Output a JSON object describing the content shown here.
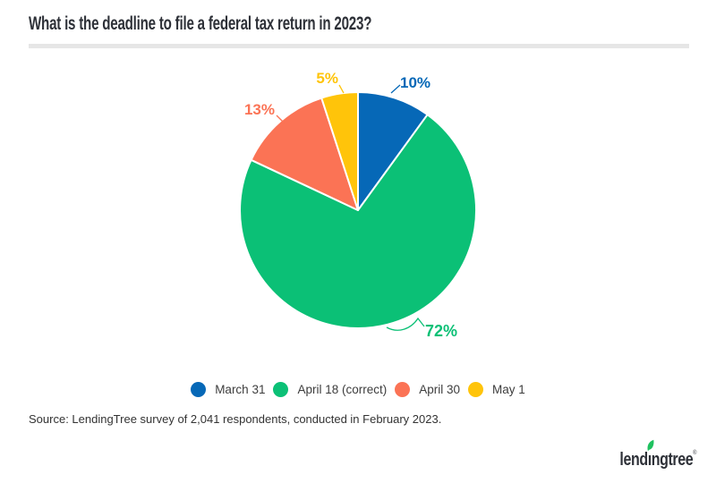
{
  "title": "What is the deadline to file a federal tax return in 2023?",
  "source": "Source: LendingTree survey of 2,041 respondents, conducted in February 2023.",
  "logo": {
    "text": "lendingtree",
    "text_pre": "lend",
    "text_i": "ı",
    "text_post": "ngtree",
    "reg": "®"
  },
  "colors": {
    "blue": "#0668B7",
    "green": "#0BC076",
    "orange": "#FB7355",
    "yellow": "#FFC40A",
    "title_text": "#2E3138",
    "body_text": "#3D3D3D",
    "divider": "#E6E6E6",
    "leaf_green": "#1FC15F"
  },
  "chart_data": {
    "type": "pie",
    "title": "What is the deadline to file a federal tax return in 2023?",
    "unit": "%",
    "direction": "clockwise",
    "start_angle_deg": 0,
    "legend_position": "bottom",
    "slices": [
      {
        "label": "March 31",
        "value": 10,
        "display": "10%",
        "color": "#0668B7"
      },
      {
        "label": "April 18 (correct)",
        "value": 72,
        "display": "72%",
        "color": "#0BC076"
      },
      {
        "label": "April 30",
        "value": 13,
        "display": "13%",
        "color": "#FB7355"
      },
      {
        "label": "May 1",
        "value": 5,
        "display": "5%",
        "color": "#FFC40A"
      }
    ]
  }
}
